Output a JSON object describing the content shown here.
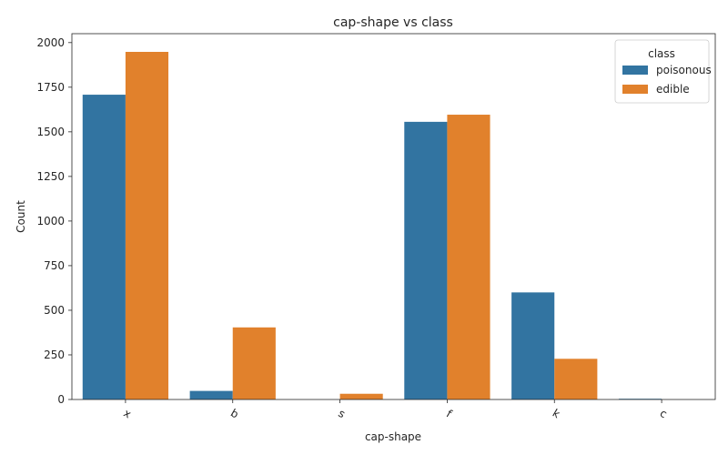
{
  "chart_data": {
    "type": "bar",
    "title": "cap-shape vs class",
    "xlabel": "cap-shape",
    "ylabel": "Count",
    "categories": [
      "x",
      "b",
      "s",
      "f",
      "k",
      "c"
    ],
    "series": [
      {
        "name": "poisonous",
        "color": "#3274a1",
        "values": [
          1708,
          48,
          0,
          1556,
          600,
          4
        ]
      },
      {
        "name": "edible",
        "color": "#e1812c",
        "values": [
          1948,
          404,
          32,
          1596,
          228,
          0
        ]
      }
    ],
    "ylim": [
      0,
      2050
    ],
    "yticks": [
      0,
      250,
      500,
      750,
      1000,
      1250,
      1500,
      1750,
      2000
    ],
    "xtick_rotation_deg": 30,
    "grid": false,
    "legend": {
      "title": "class",
      "placement": "top-right"
    }
  }
}
